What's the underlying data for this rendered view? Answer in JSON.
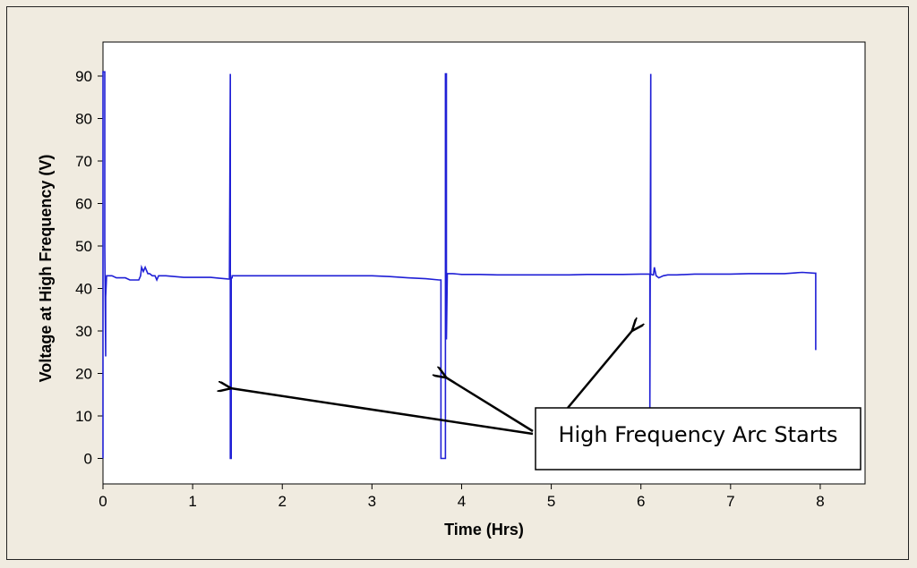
{
  "chart_data": {
    "type": "line",
    "title": "",
    "xlabel": "Time (Hrs)",
    "ylabel": "Voltage at High Frequency (V)",
    "xlim": [
      0,
      8.5
    ],
    "ylim": [
      -6,
      98
    ],
    "xticks": [
      0,
      1,
      2,
      3,
      4,
      5,
      6,
      7,
      8
    ],
    "yticks": [
      0,
      10,
      20,
      30,
      40,
      50,
      60,
      70,
      90
    ],
    "yticks_full": [
      0,
      10,
      20,
      30,
      40,
      50,
      60,
      70,
      80,
      90
    ],
    "grid": false,
    "legend": "none",
    "series": [
      {
        "color": "#1f1fd6",
        "x": [
          0.0,
          0.0,
          0.01,
          0.02,
          0.02,
          0.03,
          0.03,
          0.04,
          0.05,
          0.05,
          0.06,
          0.08,
          0.1,
          0.15,
          0.2,
          0.25,
          0.3,
          0.35,
          0.4,
          0.42,
          0.43,
          0.45,
          0.47,
          0.5,
          0.52,
          0.55,
          0.58,
          0.6,
          0.62,
          0.65,
          0.7,
          0.8,
          0.9,
          1.0,
          1.1,
          1.2,
          1.3,
          1.4,
          1.41,
          1.42,
          1.42,
          1.43,
          1.43,
          1.44,
          1.44,
          1.45,
          1.5,
          1.6,
          1.8,
          2.0,
          2.2,
          2.4,
          2.6,
          2.8,
          3.0,
          3.2,
          3.4,
          3.6,
          3.75,
          3.77,
          3.77,
          3.82,
          3.82,
          3.83,
          3.83,
          3.84,
          3.84,
          3.86,
          3.9,
          4.0,
          4.2,
          4.4,
          4.6,
          4.8,
          5.0,
          5.2,
          5.4,
          5.6,
          5.8,
          6.0,
          6.1,
          6.1,
          6.11,
          6.11,
          6.13,
          6.14,
          6.15,
          6.17,
          6.2,
          6.25,
          6.3,
          6.4,
          6.6,
          6.8,
          7.0,
          7.2,
          7.4,
          7.6,
          7.8,
          7.94,
          7.95,
          7.95
        ],
        "y": [
          0,
          91,
          91,
          91,
          50,
          24,
          38,
          43,
          43,
          43,
          43,
          43,
          43,
          42.5,
          42.5,
          42.5,
          42,
          42,
          42,
          43,
          45,
          44,
          45,
          43.5,
          43.5,
          43,
          43,
          42,
          43,
          43,
          43,
          42.8,
          42.6,
          42.6,
          42.6,
          42.6,
          42.4,
          42.2,
          42.2,
          90.5,
          0,
          0,
          42.5,
          42.5,
          43,
          43,
          43,
          43,
          43,
          43,
          43,
          43,
          43,
          43,
          43,
          42.8,
          42.5,
          42.3,
          42,
          42,
          0,
          0,
          90.5,
          90.5,
          28,
          43.5,
          43.5,
          43.5,
          43.5,
          43.3,
          43.3,
          43.2,
          43.2,
          43.2,
          43.2,
          43.2,
          43.3,
          43.3,
          43.3,
          43.4,
          43.4,
          12,
          90.5,
          43.4,
          43.2,
          43.2,
          45,
          43,
          42.5,
          43,
          43.2,
          43.2,
          43.4,
          43.4,
          43.4,
          43.5,
          43.5,
          43.5,
          43.8,
          43.6,
          43.6,
          25.5
        ]
      }
    ],
    "annotation": {
      "text": "High Frequency Arc Starts",
      "arrow_targets": [
        {
          "x": 1.43,
          "y": 16.5
        },
        {
          "x": 3.83,
          "y": 19
        },
        {
          "x": 5.9,
          "y": 30
        }
      ]
    }
  }
}
